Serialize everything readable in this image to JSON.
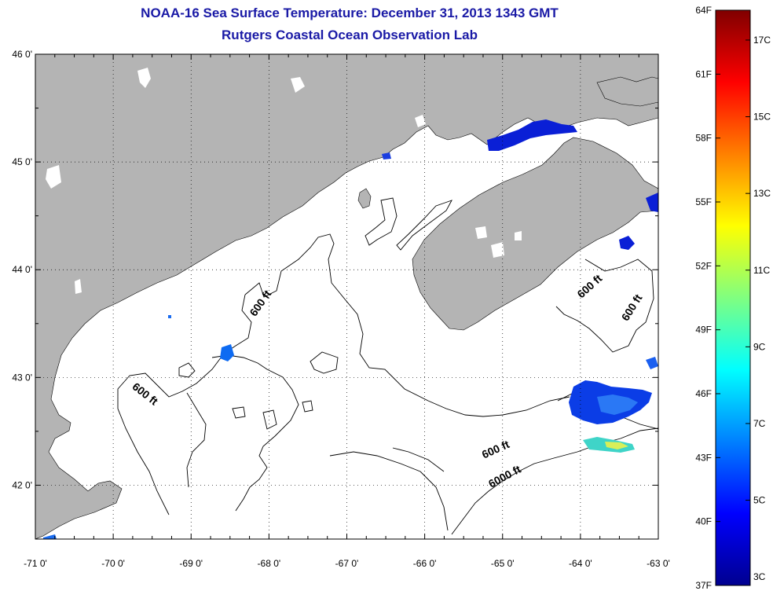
{
  "title": {
    "line1": "NOAA-16 Sea Surface Temperature:  December 31, 2013 1343 GMT",
    "line2": "Rutgers Coastal Ocean Observation Lab"
  },
  "map": {
    "lon_range": [
      -71,
      -63
    ],
    "lat_range": [
      41.5,
      46
    ],
    "x_ticks": [
      {
        "lon": -71,
        "label": "-71 0'"
      },
      {
        "lon": -70,
        "label": "-70 0'"
      },
      {
        "lon": -69,
        "label": "-69 0'"
      },
      {
        "lon": -68,
        "label": "-68 0'"
      },
      {
        "lon": -67,
        "label": "-67 0'"
      },
      {
        "lon": -66,
        "label": "-66 0'"
      },
      {
        "lon": -65,
        "label": "-65 0'"
      },
      {
        "lon": -64,
        "label": "-64 0'"
      },
      {
        "lon": -63,
        "label": "-63 0'"
      }
    ],
    "y_ticks": [
      {
        "lat": 46,
        "label": "46 0'"
      },
      {
        "lat": 45,
        "label": "45 0'"
      },
      {
        "lat": 44,
        "label": "44 0'"
      },
      {
        "lat": 43,
        "label": "43 0'"
      },
      {
        "lat": 42,
        "label": "42 0'"
      }
    ],
    "grid": true,
    "land_color": "#b4b4b4",
    "water_color": "#ffffff",
    "contour_labels": [
      {
        "text": "600 ft",
        "lon": -68.07,
        "lat": 43.67,
        "angle": -55
      },
      {
        "text": "600 ft",
        "lon": -69.62,
        "lat": 42.82,
        "angle": 38
      },
      {
        "text": "600 ft",
        "lon": -63.85,
        "lat": 43.82,
        "angle": -42
      },
      {
        "text": "600 ft",
        "lon": -63.3,
        "lat": 43.63,
        "angle": -58
      },
      {
        "text": "600 ft",
        "lon": -65.07,
        "lat": 42.3,
        "angle": -24
      },
      {
        "text": "6000 ft",
        "lon": -64.95,
        "lat": 42.05,
        "angle": -28
      }
    ]
  },
  "colorbar": {
    "colors": [
      "#00008f",
      "#0000ff",
      "#0080ff",
      "#00ffff",
      "#80ff80",
      "#ffff00",
      "#ff8000",
      "#ff0000",
      "#800000"
    ],
    "f_range": [
      37,
      64
    ],
    "f_labels": [
      "64F",
      "61F",
      "58F",
      "55F",
      "52F",
      "49F",
      "46F",
      "43F",
      "40F",
      "37F"
    ],
    "c_labels": [
      "17C",
      "15C",
      "13C",
      "11C",
      "9C",
      "7C",
      "5C",
      "3C"
    ]
  }
}
